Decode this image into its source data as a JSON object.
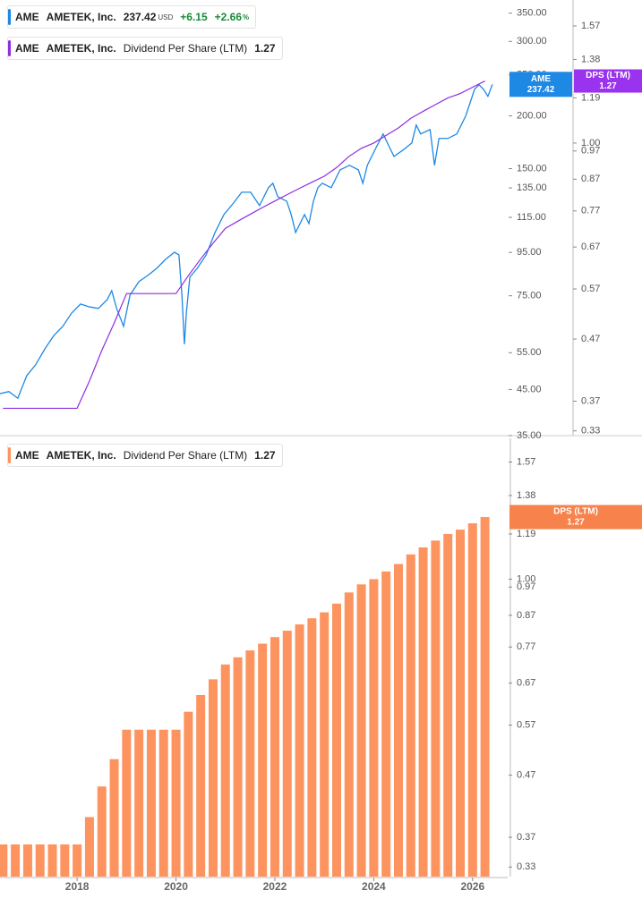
{
  "chart_data": [
    {
      "type": "line",
      "y_scale": "log",
      "y2_scale": "log",
      "xlim": [
        2016.44,
        2026.71
      ],
      "ylim": [
        35,
        376
      ],
      "yticks": [
        {
          "value": 35,
          "label": "35.00"
        },
        {
          "value": 45,
          "label": "45.00"
        },
        {
          "value": 55,
          "label": "55.00"
        },
        {
          "value": 75,
          "label": "75.00"
        },
        {
          "value": 95,
          "label": "95.00"
        },
        {
          "value": 115,
          "label": "115.00"
        },
        {
          "value": 135,
          "label": "135.00"
        },
        {
          "value": 150,
          "label": "150.00"
        },
        {
          "value": 200,
          "label": "200.00"
        },
        {
          "value": 250,
          "label": "250.00"
        },
        {
          "value": 300,
          "label": "300.00"
        },
        {
          "value": 350,
          "label": "350.00"
        }
      ],
      "y2lim": [
        0.324,
        1.735
      ],
      "y2ticks": [
        0.33,
        0.37,
        0.47,
        0.57,
        0.67,
        0.77,
        0.87,
        0.97,
        {
          "value": 1,
          "label": "1.00"
        },
        1.19,
        1.38,
        1.57
      ],
      "series": [
        {
          "name": "AMETEK, Inc.",
          "ticker": "AME",
          "color": "#1e88e5",
          "last_label": "237.42",
          "currency": "USD",
          "change": "+6.15",
          "change_percent": "+2.66",
          "percent_sign": "%",
          "x": [
            2016.44,
            2016.62,
            2016.8,
            2016.98,
            2017.16,
            2017.35,
            2017.53,
            2017.71,
            2017.89,
            2018.07,
            2018.25,
            2018.43,
            2018.61,
            2018.7,
            2018.8,
            2018.94,
            2019.07,
            2019.25,
            2019.43,
            2019.61,
            2019.79,
            2019.97,
            2020.06,
            2020.12,
            2020.17,
            2020.21,
            2020.28,
            2020.43,
            2020.61,
            2020.79,
            2020.97,
            2021.15,
            2021.33,
            2021.51,
            2021.69,
            2021.87,
            2021.96,
            2022.06,
            2022.24,
            2022.33,
            2022.42,
            2022.6,
            2022.69,
            2022.78,
            2022.87,
            2022.96,
            2023.14,
            2023.32,
            2023.51,
            2023.69,
            2023.78,
            2023.87,
            2024.05,
            2024.19,
            2024.32,
            2024.41,
            2024.59,
            2024.77,
            2024.86,
            2024.95,
            2025.14,
            2025.23,
            2025.32,
            2025.5,
            2025.68,
            2025.86,
            2026.04,
            2026.13,
            2026.22,
            2026.31,
            2026.4
          ],
          "values": [
            44.0,
            44.5,
            42.9,
            48.5,
            51.5,
            56.2,
            60.4,
            63.5,
            68.3,
            71.7,
            70.6,
            70.0,
            73.5,
            77.1,
            70.0,
            63.5,
            75.3,
            81.0,
            83.8,
            87.1,
            91.5,
            95.1,
            93.7,
            75.3,
            57.6,
            68.3,
            83.0,
            87.1,
            93.7,
            105.9,
            116.8,
            123.8,
            131.9,
            131.9,
            122.6,
            135.2,
            138.5,
            128.7,
            125.6,
            116.8,
            105.9,
            116.8,
            111.2,
            125.6,
            135.2,
            138.5,
            135.2,
            149.0,
            152.7,
            149.0,
            138.5,
            152.7,
            168.4,
            181.2,
            168.4,
            160.3,
            165.9,
            172.5,
            190.2,
            181.2,
            185.6,
            152.7,
            176.8,
            176.8,
            181.2,
            199.7,
            231.2,
            236.9,
            231.2,
            222.4,
            237.42
          ]
        },
        {
          "name": "AMETEK, Inc.",
          "ticker": "AME",
          "metric": "Dividend Per Share (LTM)",
          "badge": "DPS (LTM)",
          "last_label": "1.27",
          "color": "#8e2de2",
          "axis": "y2",
          "x": [
            2016.5,
            2016.75,
            2017.0,
            2017.25,
            2017.5,
            2017.75,
            2018.0,
            2018.25,
            2018.5,
            2018.75,
            2019.0,
            2019.25,
            2019.5,
            2019.75,
            2020.0,
            2020.25,
            2020.5,
            2020.75,
            2021.0,
            2021.25,
            2021.5,
            2021.75,
            2022.0,
            2022.25,
            2022.5,
            2022.75,
            2023.0,
            2023.25,
            2023.5,
            2023.75,
            2024.0,
            2024.25,
            2024.5,
            2024.75,
            2025.0,
            2025.25,
            2025.5,
            2025.75,
            2026.0,
            2026.25
          ],
          "values": [
            0.36,
            0.36,
            0.36,
            0.36,
            0.36,
            0.36,
            0.36,
            0.4,
            0.45,
            0.5,
            0.56,
            0.56,
            0.56,
            0.56,
            0.56,
            0.6,
            0.64,
            0.68,
            0.72,
            0.74,
            0.76,
            0.78,
            0.8,
            0.82,
            0.84,
            0.86,
            0.88,
            0.91,
            0.95,
            0.98,
            1.0,
            1.03,
            1.06,
            1.1,
            1.13,
            1.16,
            1.19,
            1.21,
            1.24,
            1.27
          ]
        }
      ]
    },
    {
      "type": "bar",
      "y_scale": "log",
      "xlim": [
        2016.44,
        2026.71
      ],
      "xticks": [
        2018,
        2020,
        2022,
        2024,
        2026
      ],
      "ylim": [
        0.318,
        1.72
      ],
      "yticks": [
        0.33,
        0.37,
        0.47,
        0.57,
        0.67,
        0.77,
        0.87,
        0.97,
        {
          "value": 1,
          "label": "1.00"
        },
        1.19,
        1.38,
        1.57
      ],
      "series": [
        {
          "name": "AMETEK, Inc.",
          "ticker": "AME",
          "metric": "Dividend Per Share (LTM)",
          "badge": "DPS (LTM)",
          "last_label": "1.27",
          "color": "#fd9460",
          "badge_color": "#f7824c",
          "x": [
            2016.5,
            2016.75,
            2017.0,
            2017.25,
            2017.5,
            2017.75,
            2018.0,
            2018.25,
            2018.5,
            2018.75,
            2019.0,
            2019.25,
            2019.5,
            2019.75,
            2020.0,
            2020.25,
            2020.5,
            2020.75,
            2021.0,
            2021.25,
            2021.5,
            2021.75,
            2022.0,
            2022.25,
            2022.5,
            2022.75,
            2023.0,
            2023.25,
            2023.5,
            2023.75,
            2024.0,
            2024.25,
            2024.5,
            2024.75,
            2025.0,
            2025.25,
            2025.5,
            2025.75,
            2026.0,
            2026.25
          ],
          "values": [
            0.36,
            0.36,
            0.36,
            0.36,
            0.36,
            0.36,
            0.36,
            0.4,
            0.45,
            0.5,
            0.56,
            0.56,
            0.56,
            0.56,
            0.56,
            0.6,
            0.64,
            0.68,
            0.72,
            0.74,
            0.76,
            0.78,
            0.8,
            0.82,
            0.84,
            0.86,
            0.88,
            0.91,
            0.95,
            0.98,
            1.0,
            1.03,
            1.06,
            1.1,
            1.13,
            1.16,
            1.19,
            1.21,
            1.24,
            1.27
          ]
        }
      ]
    }
  ]
}
